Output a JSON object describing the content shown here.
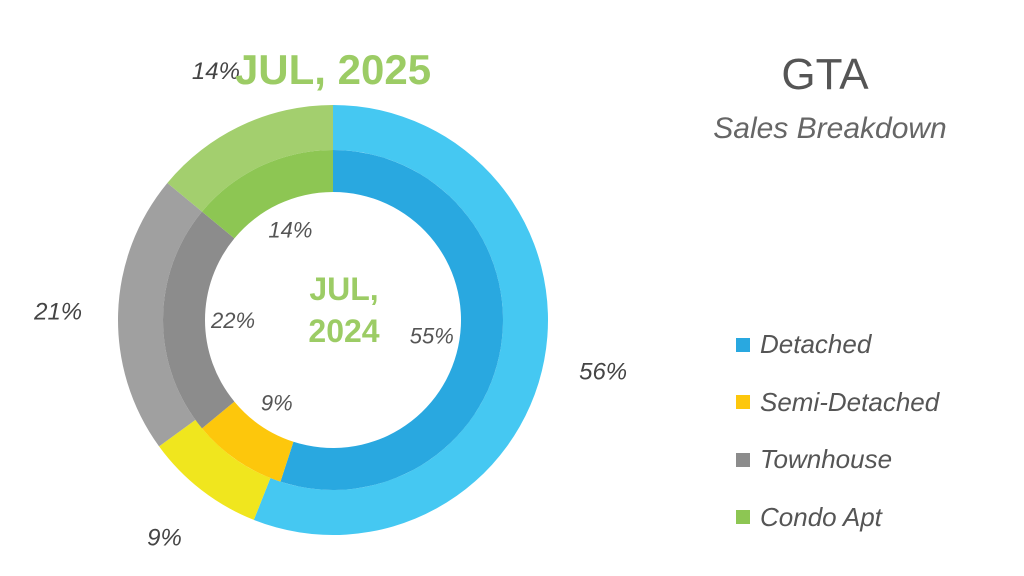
{
  "header": {
    "title": "GTA",
    "subtitle": "Sales Breakdown"
  },
  "chart_data": {
    "type": "pie",
    "subtype": "nested-donut",
    "categories": [
      "Detached",
      "Semi-Detached",
      "Townhouse",
      "Condo Apt"
    ],
    "series": [
      {
        "name": "JUL, 2025",
        "ring": "outer",
        "values": [
          56,
          9,
          21,
          14
        ],
        "labels": [
          "56%",
          "9%",
          "21%",
          "14%"
        ],
        "colors": [
          "#45C8F2",
          "#F0E61E",
          "#A0A0A0",
          "#A3CF6E"
        ]
      },
      {
        "name": "JUL, 2024",
        "ring": "inner",
        "values": [
          55,
          9,
          22,
          14
        ],
        "labels": [
          "55%",
          "9%",
          "22%",
          "14%"
        ],
        "colors": [
          "#29A8E0",
          "#FDC70C",
          "#8C8C8C",
          "#8DC653"
        ]
      }
    ],
    "outer_title": "JUL, 2025",
    "inner_title_line1": "JUL,",
    "inner_title_line2": "2024",
    "legend": {
      "position": "right",
      "items": [
        {
          "label": "Detached",
          "color": "#29A8E0"
        },
        {
          "label": "Semi-Detached",
          "color": "#FDC70C"
        },
        {
          "label": "Townhouse",
          "color": "#8C8C8C"
        },
        {
          "label": "Condo Apt",
          "color": "#8DC653"
        }
      ]
    }
  }
}
